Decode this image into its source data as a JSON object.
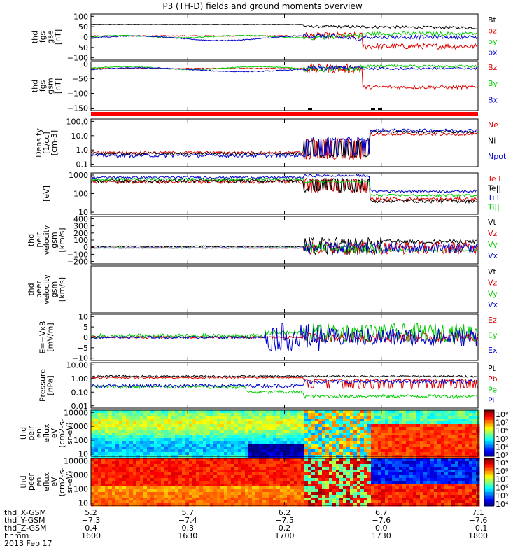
{
  "title": "P3 (TH-D) fields and ground moments overview",
  "chart_data": [
    {
      "type": "line",
      "panel": "fgs_gse",
      "ylabel": [
        "thd",
        "fgs",
        "gse",
        "[nT]"
      ],
      "yticks": [
        "100",
        "50",
        "0",
        "−50",
        "−100"
      ],
      "ylim": [
        -100,
        100
      ],
      "series": [
        {
          "name": "Bt",
          "color": "#000000"
        },
        {
          "name": "bz",
          "color": "#e00000"
        },
        {
          "name": "by",
          "color": "#00cc00"
        },
        {
          "name": "bx",
          "color": "#0000cc"
        }
      ]
    },
    {
      "type": "line",
      "panel": "fgs_gsm",
      "ylabel": [
        "thd",
        "fgs",
        "gsm",
        "[nT]"
      ],
      "yticks": [
        "0",
        "−50",
        "−100",
        "−150"
      ],
      "ylim": [
        -180,
        30
      ],
      "series": [
        {
          "name": "Bz",
          "color": "#e00000"
        },
        {
          "name": "By",
          "color": "#00cc00"
        },
        {
          "name": "Bx",
          "color": "#0000cc"
        }
      ]
    },
    {
      "type": "line",
      "panel": "density",
      "ylabel": [
        "Density",
        "[1/cc]",
        "[cm-3]"
      ],
      "yticks": [
        "100.0",
        "10.0",
        "1.0",
        "0.1"
      ],
      "log": true,
      "series": [
        {
          "name": "Ne",
          "color": "#e00000"
        },
        {
          "name": "Ni",
          "color": "#000000"
        },
        {
          "name": "Npot",
          "color": "#0000cc"
        }
      ]
    },
    {
      "type": "line",
      "panel": "temperature",
      "ylabel": [
        "[eV]"
      ],
      "yticks": [
        "1000",
        "100",
        "10"
      ],
      "log": true,
      "series": [
        {
          "name": "Te⊥",
          "color": "#e00000"
        },
        {
          "name": "Te||",
          "color": "#000000"
        },
        {
          "name": "Ti⊥",
          "color": "#0000cc"
        },
        {
          "name": "Ti||",
          "color": "#00cc00"
        }
      ]
    },
    {
      "type": "line",
      "panel": "peir_velocity",
      "ylabel": [
        "thd",
        "peir",
        "velocity",
        "gsm",
        "[km/s]"
      ],
      "yticks": [
        "400",
        "300",
        "200",
        "100",
        "0",
        "−100",
        "−200"
      ],
      "ylim": [
        -200,
        400
      ],
      "series": [
        {
          "name": "Vt",
          "color": "#000000"
        },
        {
          "name": "Vz",
          "color": "#e00000"
        },
        {
          "name": "Vy",
          "color": "#00cc00"
        },
        {
          "name": "Vx",
          "color": "#0000cc"
        }
      ]
    },
    {
      "type": "line",
      "panel": "peer_velocity",
      "ylabel": [
        "thd",
        "peer",
        "velocity",
        "gsm",
        "[km/s]"
      ],
      "yticks": [],
      "series": [
        {
          "name": "Vt",
          "color": "#000000"
        },
        {
          "name": "Vz",
          "color": "#e00000"
        },
        {
          "name": "Vy",
          "color": "#00cc00"
        },
        {
          "name": "Vx",
          "color": "#0000cc"
        }
      ]
    },
    {
      "type": "line",
      "panel": "efield",
      "ylabel": [
        "E=−VxB",
        "[mV/m]"
      ],
      "yticks": [
        "10",
        "5",
        "0",
        "−5",
        "−10"
      ],
      "ylim": [
        -10,
        10
      ],
      "series": [
        {
          "name": "Ez",
          "color": "#e00000"
        },
        {
          "name": "Ey",
          "color": "#00cc00"
        },
        {
          "name": "Ex",
          "color": "#0000cc"
        }
      ]
    },
    {
      "type": "line",
      "panel": "pressure",
      "ylabel": [
        "Pressure",
        "[nPa]"
      ],
      "yticks": [
        "10.00",
        "1.00",
        "0.10",
        "0.01"
      ],
      "log": true,
      "series": [
        {
          "name": "Pt",
          "color": "#000000"
        },
        {
          "name": "Pb",
          "color": "#e00000"
        },
        {
          "name": "Pe",
          "color": "#00cc00"
        },
        {
          "name": "Pi",
          "color": "#0000cc"
        }
      ]
    },
    {
      "type": "heatmap",
      "panel": "peir_en",
      "ylabel": [
        "thd",
        "peir",
        "en",
        "eflux",
        "eV",
        "(cm2-s-",
        "sr-eV)"
      ],
      "yticks": [
        "10000",
        "1000",
        "100",
        "10"
      ],
      "colorbar": [
        "10⁸",
        "10⁷",
        "10⁶",
        "10⁵",
        "10⁴",
        "10³"
      ]
    },
    {
      "type": "heatmap",
      "panel": "peer_en",
      "ylabel": [
        "thd",
        "peer",
        "en",
        "eflux",
        "eV",
        "(cm2-s-",
        "sr-eV)"
      ],
      "yticks": [
        "10000",
        "1000",
        "100",
        "10"
      ],
      "colorbar": [
        "10⁹",
        "10⁸",
        "10⁷",
        "10⁶",
        "10⁵",
        "10⁴"
      ]
    }
  ],
  "footer": {
    "rows": [
      {
        "label": "thd_X-GSM",
        "values": [
          "5.2",
          "5.7",
          "6.2",
          "6.7",
          "7.1"
        ]
      },
      {
        "label": "thd_Y-GSM",
        "values": [
          "−7.3",
          "−7.4",
          "−7.5",
          "−7.6",
          "−7.6"
        ]
      },
      {
        "label": "thd_Z-GSM",
        "values": [
          "0.4",
          "0.3",
          "0.2",
          "0.0",
          "−0.1"
        ]
      },
      {
        "label": "hhmm",
        "values": [
          "1600",
          "1630",
          "1700",
          "1730",
          "1800"
        ]
      }
    ],
    "date": "2013 Feb 17"
  }
}
